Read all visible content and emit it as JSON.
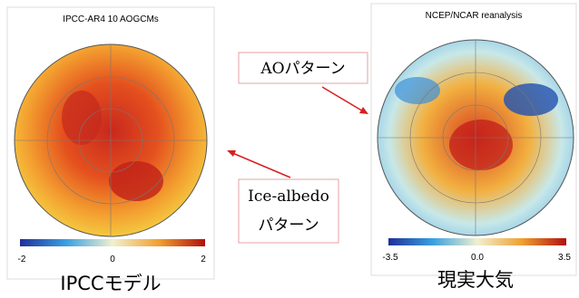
{
  "panels": [
    {
      "title": "IPCC-AR4 10 AOGCMs",
      "colorbar_ticks": [
        "-2",
        "0",
        "2"
      ],
      "caption": "IPCCモデル"
    },
    {
      "title": "NCEP/NCAR reanalysis",
      "colorbar_ticks": [
        "-3.5",
        "0.0",
        "3.5"
      ],
      "caption": "現実大気"
    }
  ],
  "callouts": [
    {
      "lines": [
        "AOパターン"
      ]
    },
    {
      "lines": [
        "Ice-albedo",
        "パターン"
      ]
    }
  ]
}
